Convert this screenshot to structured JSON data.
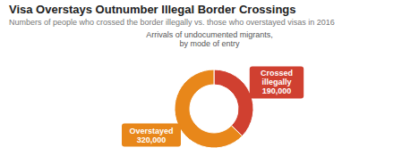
{
  "chart_data": {
    "type": "donut",
    "title": "Visa Overstays Outnumber Illegal Border Crossings",
    "subtitle": "Numbers of people who crossed the border illegally vs. those who overstayed visas in 2016",
    "annotations": [
      "Arrivals of undocumented migrants,\nby mode of entry"
    ],
    "categories": [
      "Crossed\nillegally",
      "Overstayed"
    ],
    "values": [
      190000,
      320000
    ],
    "value_labels": [
      "190,000",
      "320,000"
    ],
    "colors": [
      "#d04030",
      "#e8871a"
    ],
    "data_labels": true
  }
}
